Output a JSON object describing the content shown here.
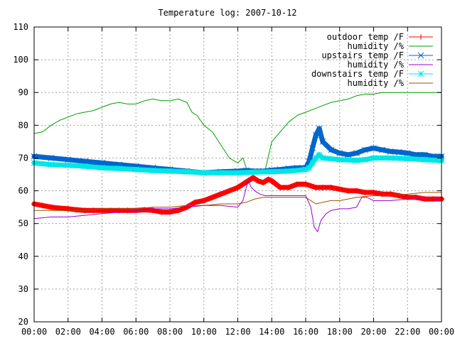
{
  "chart_data": {
    "type": "line",
    "title": "Temperature log: 2007-10-12",
    "xlabel": "",
    "ylabel": "",
    "x_ticks": [
      "00:00",
      "02:00",
      "04:00",
      "06:00",
      "08:00",
      "10:00",
      "12:00",
      "14:00",
      "16:00",
      "18:00",
      "20:00",
      "22:00",
      "00:00"
    ],
    "xlim": [
      0,
      24
    ],
    "ylim": [
      20,
      110
    ],
    "y_ticks": [
      20,
      30,
      40,
      50,
      60,
      70,
      80,
      90,
      100,
      110
    ],
    "grid": true,
    "legend_position": "top-right",
    "series": [
      {
        "name": "outdoor temp /F",
        "color": "#ff0000",
        "marker": "plus",
        "x": [
          0,
          0.5,
          1,
          1.5,
          2,
          2.5,
          3,
          3.5,
          4,
          4.5,
          5,
          5.5,
          6,
          6.5,
          7,
          7.5,
          8,
          8.5,
          9,
          9.5,
          10,
          10.5,
          11,
          11.5,
          12,
          12.3,
          12.6,
          12.9,
          13.2,
          13.5,
          13.8,
          14,
          14.5,
          15,
          15.5,
          16,
          16.3,
          16.6,
          17,
          17.5,
          18,
          18.5,
          19,
          19.5,
          20,
          20.5,
          21,
          21.5,
          22,
          22.5,
          23,
          23.5,
          24
        ],
        "values": [
          56,
          55.5,
          55,
          54.7,
          54.5,
          54.2,
          54,
          54,
          54,
          54,
          54,
          54,
          54,
          54.2,
          54,
          53.5,
          53.5,
          54,
          55,
          56.5,
          57,
          58,
          59,
          60,
          61,
          62,
          63,
          64,
          63,
          62.5,
          63.5,
          63,
          61,
          61,
          62,
          62,
          61.5,
          61,
          61,
          61,
          60.5,
          60,
          60,
          59.5,
          59.5,
          59,
          59,
          58.5,
          58,
          58,
          57.5,
          57.5,
          57.5
        ]
      },
      {
        "name": "humidity /%",
        "color": "#00a000",
        "marker": "none",
        "x": [
          0,
          0.5,
          1,
          1.5,
          2,
          2.5,
          3,
          3.5,
          4,
          4.5,
          5,
          5.5,
          6,
          6.5,
          7,
          7.5,
          8,
          8.5,
          9,
          9.3,
          9.6,
          10,
          10.5,
          11,
          11.5,
          12,
          12.3,
          12.5,
          12.8,
          13,
          13.3,
          13.6,
          14,
          14.5,
          15,
          15.5,
          16,
          16.5,
          17,
          17.5,
          18,
          18.5,
          19,
          19.5,
          20,
          20.5,
          21,
          21.5,
          22,
          22.5,
          23,
          23.5,
          24
        ],
        "values": [
          77.5,
          78,
          80,
          81.5,
          82.5,
          83.5,
          84,
          84.5,
          85.5,
          86.5,
          87,
          86.5,
          86.5,
          87.5,
          88,
          87.5,
          87.5,
          88,
          87,
          84,
          83,
          80,
          78,
          74,
          70,
          68.5,
          70,
          67,
          66,
          65,
          66,
          66,
          75,
          78,
          81,
          83,
          84,
          85,
          86,
          87,
          87.5,
          88,
          89,
          89.5,
          89.5,
          90,
          90,
          90,
          90,
          90,
          90,
          90,
          90
        ]
      },
      {
        "name": "upstairs temp /F",
        "color": "#0066cc",
        "marker": "x",
        "x": [
          0,
          1,
          2,
          3,
          4,
          5,
          6,
          7,
          8,
          9,
          10,
          11,
          12,
          12.5,
          13,
          13.5,
          14,
          14.5,
          15,
          15.5,
          16,
          16.2,
          16.4,
          16.6,
          16.8,
          17,
          17.5,
          18,
          18.5,
          19,
          19.5,
          20,
          20.5,
          21,
          21.5,
          22,
          22.5,
          23,
          23.5,
          24
        ],
        "values": [
          70.5,
          70,
          69.5,
          69,
          68.5,
          68,
          67.5,
          67,
          66.5,
          66,
          65.5,
          65.8,
          66,
          66.2,
          66,
          66,
          66.3,
          66.5,
          66.8,
          67,
          67,
          69,
          73,
          77,
          79,
          75,
          72.5,
          71.5,
          71,
          71.5,
          72.5,
          73,
          72.5,
          72,
          71.8,
          71.5,
          71,
          71,
          70.5,
          70.5
        ]
      },
      {
        "name": "humidity /%",
        "color": "#9900cc",
        "marker": "none",
        "x": [
          0,
          1,
          2,
          3,
          4,
          5,
          6,
          7,
          8,
          9,
          10,
          11,
          12,
          12.3,
          12.6,
          12.8,
          13,
          13.3,
          13.6,
          14,
          15,
          16,
          16.3,
          16.5,
          16.7,
          16.9,
          17.2,
          17.5,
          18,
          18.5,
          19,
          19.3,
          19.6,
          20,
          21,
          22,
          23,
          24
        ],
        "values": [
          51.5,
          52,
          52,
          52.5,
          53,
          53.5,
          54,
          54.5,
          54.5,
          55,
          55.5,
          55.5,
          55,
          57,
          63,
          61,
          60,
          59,
          58.5,
          58.5,
          58.5,
          58.5,
          55,
          49,
          47.5,
          51,
          53,
          54,
          54.5,
          54.5,
          55,
          58,
          58,
          57,
          57,
          57.5,
          57.5,
          57
        ]
      },
      {
        "name": "downstairs temp /F",
        "color": "#00e5e5",
        "marker": "star",
        "x": [
          0,
          1,
          2,
          3,
          4,
          5,
          6,
          7,
          8,
          9,
          10,
          11,
          12,
          13,
          14,
          15,
          16,
          16.2,
          16.4,
          16.6,
          16.8,
          17,
          18,
          19,
          19.5,
          20,
          21,
          22,
          23,
          24
        ],
        "values": [
          68.5,
          68,
          67.8,
          67.5,
          67,
          66.8,
          66.5,
          66.2,
          66,
          65.8,
          65.5,
          65.5,
          65.5,
          65.7,
          65.8,
          66,
          66.5,
          67,
          68.5,
          70,
          71,
          70,
          69.5,
          69.3,
          69.5,
          70,
          70,
          69.8,
          69.5,
          69.2
        ]
      },
      {
        "name": "humidity /%",
        "color": "#a05000",
        "marker": "none",
        "x": [
          0,
          1,
          2,
          3,
          4,
          5,
          6,
          7,
          8,
          9,
          10,
          11,
          12,
          12.5,
          13,
          13.5,
          14,
          15,
          16,
          16.3,
          16.6,
          17,
          17.5,
          18,
          18.5,
          19,
          20,
          21,
          22,
          23,
          24
        ],
        "values": [
          54,
          54,
          54,
          54,
          54.5,
          54.5,
          54.5,
          55,
          55,
          55.5,
          55.5,
          56,
          56,
          56.5,
          57.5,
          58,
          58,
          58,
          58,
          57,
          56,
          56.5,
          57,
          57,
          57.5,
          58,
          58.5,
          58.5,
          59,
          59.5,
          59.5
        ]
      }
    ]
  }
}
